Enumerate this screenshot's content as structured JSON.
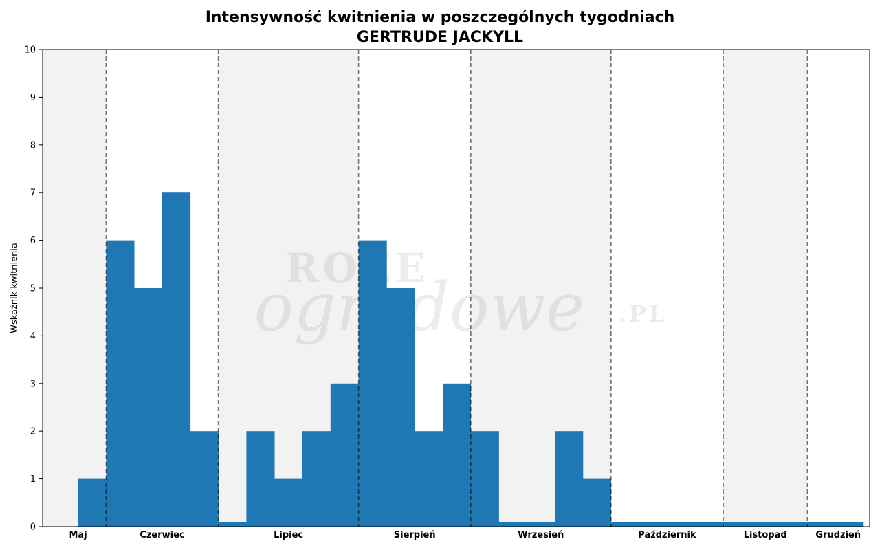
{
  "chart_data": {
    "type": "bar",
    "title": "Intensywność kwitnienia w poszczególnych tygodniach",
    "subtitle": "GERTRUDE JACKYLL",
    "xlabel": "",
    "ylabel": "Wskaźnik kwitnienia",
    "ylim": [
      0,
      10
    ],
    "yticks": [
      0,
      1,
      2,
      3,
      4,
      5,
      6,
      7,
      8,
      9,
      10
    ],
    "grid": false,
    "color": "#1f77b4",
    "bar_values": [
      0,
      1,
      6,
      5,
      7,
      2,
      0.1,
      2,
      1,
      2,
      3,
      6,
      5,
      2,
      3,
      2,
      0.1,
      0.1,
      2,
      1,
      0.1,
      0.1,
      0.1,
      0.1,
      0.1,
      0.1,
      0.1,
      0.1,
      0.1
    ],
    "months": [
      {
        "name": "Maj",
        "weeks": 2,
        "shaded": true
      },
      {
        "name": "Czerwiec",
        "weeks": 4,
        "shaded": false
      },
      {
        "name": "Lipiec",
        "weeks": 5,
        "shaded": true
      },
      {
        "name": "Sierpień",
        "weeks": 4,
        "shaded": false
      },
      {
        "name": "Wrzesień",
        "weeks": 5,
        "shaded": true
      },
      {
        "name": "Październik",
        "weeks": 4,
        "shaded": false
      },
      {
        "name": "Listopad",
        "weeks": 3,
        "shaded": true
      },
      {
        "name": "Grudzień",
        "weeks": 2,
        "shaded": false
      }
    ],
    "watermark": {
      "line1": "ROZE",
      "line2": "ogrodowe",
      "suffix": ".PL"
    }
  }
}
